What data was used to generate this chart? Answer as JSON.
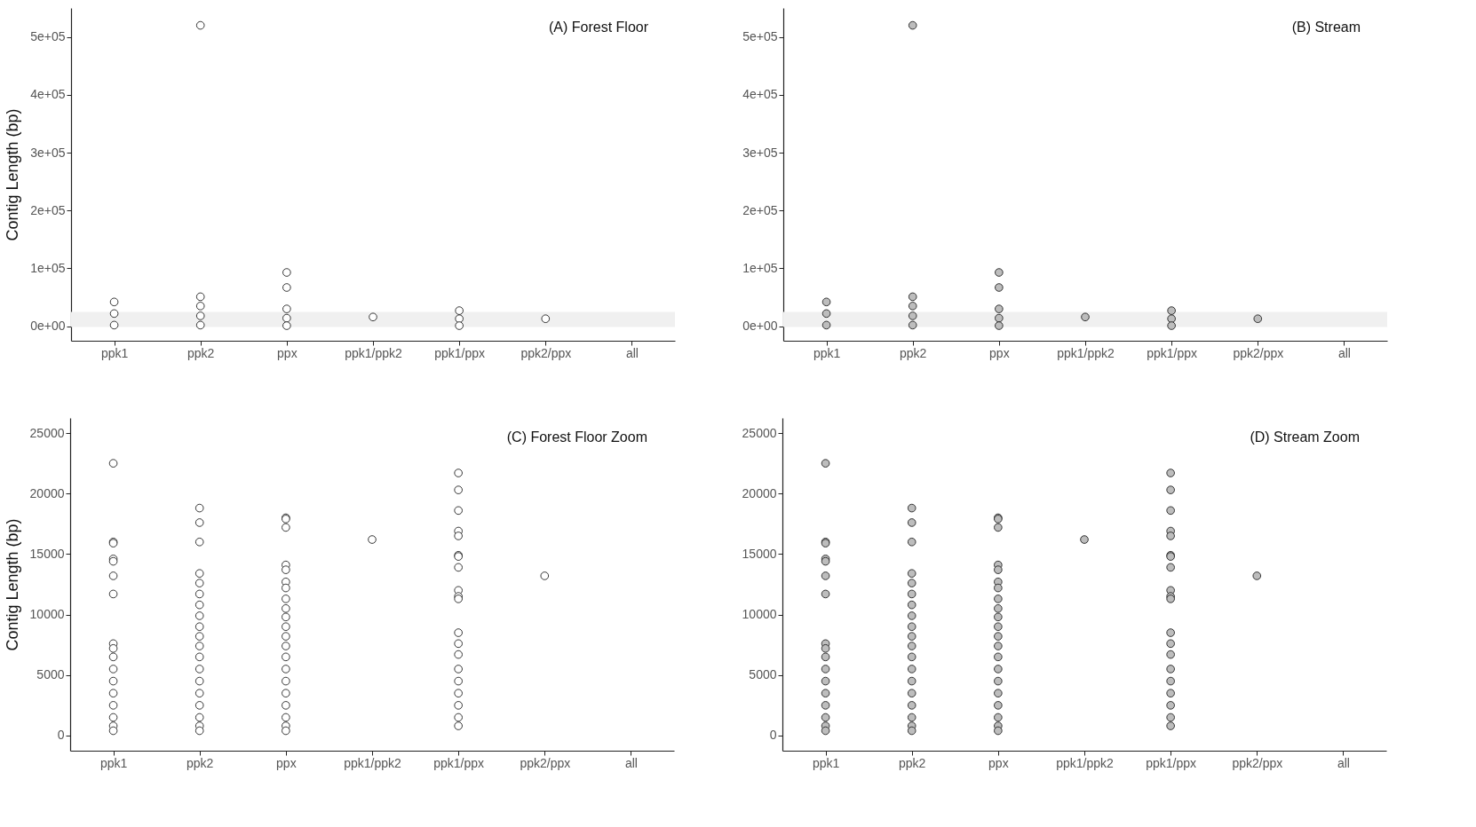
{
  "chart_data": [
    {
      "type": "scatter",
      "title": "(A) Forest Floor",
      "ylabel": "Contig Length (bp)",
      "marker": "circle",
      "categories": [
        "ppk1",
        "ppk2",
        "ppx",
        "ppk1/ppk2",
        "ppk1/ppx",
        "ppk2/ppx",
        "all"
      ],
      "ylim": [
        -25000,
        550000
      ],
      "yticks": [
        {
          "value": 0,
          "label": "0e+00"
        },
        {
          "value": 100000,
          "label": "1e+05"
        },
        {
          "value": 200000,
          "label": "2e+05"
        },
        {
          "value": 300000,
          "label": "3e+05"
        },
        {
          "value": 400000,
          "label": "4e+05"
        },
        {
          "value": 500000,
          "label": "5e+05"
        }
      ],
      "bands": [
        {
          "axis": "y",
          "from": -1200,
          "to": 25000,
          "color": "#f0f0f0"
        }
      ],
      "series": [
        {
          "color": "#ffffff",
          "x": [
            "ppk1",
            "ppk1",
            "ppk1",
            "ppk2",
            "ppk2",
            "ppk2",
            "ppk2",
            "ppk2",
            "ppx",
            "ppx",
            "ppx",
            "ppx",
            "ppx",
            "ppk1/ppk2",
            "ppk1/ppx",
            "ppk1/ppx",
            "ppk1/ppx",
            "ppk2/ppx"
          ],
          "values": [
            42000,
            22000,
            2000,
            520000,
            51000,
            35000,
            18000,
            2000,
            93000,
            67000,
            30000,
            14000,
            1000,
            16000,
            27000,
            13000,
            1000,
            13000
          ]
        }
      ]
    },
    {
      "type": "scatter",
      "title": "(B) Stream",
      "marker": "circle",
      "categories": [
        "ppk1",
        "ppk2",
        "ppx",
        "ppk1/ppk2",
        "ppk1/ppx",
        "ppk2/ppx",
        "all"
      ],
      "ylim": [
        -25000,
        550000
      ],
      "yticks": [
        {
          "value": 0,
          "label": "0e+00"
        },
        {
          "value": 100000,
          "label": "1e+05"
        },
        {
          "value": 200000,
          "label": "2e+05"
        },
        {
          "value": 300000,
          "label": "3e+05"
        },
        {
          "value": 400000,
          "label": "4e+05"
        },
        {
          "value": 500000,
          "label": "5e+05"
        }
      ],
      "bands": [
        {
          "axis": "y",
          "from": -1200,
          "to": 25000,
          "color": "#f0f0f0"
        }
      ],
      "series": [
        {
          "color": "#bdbdbd",
          "x": [
            "ppk1",
            "ppk1",
            "ppk1",
            "ppk2",
            "ppk2",
            "ppk2",
            "ppk2",
            "ppk2",
            "ppx",
            "ppx",
            "ppx",
            "ppx",
            "ppx",
            "ppk1/ppk2",
            "ppk1/ppx",
            "ppk1/ppx",
            "ppk1/ppx",
            "ppk2/ppx"
          ],
          "values": [
            42000,
            22000,
            2000,
            520000,
            51000,
            35000,
            18000,
            2000,
            93000,
            67000,
            30000,
            14000,
            1000,
            16000,
            27000,
            13000,
            1000,
            13000
          ]
        }
      ]
    },
    {
      "type": "scatter",
      "title": "(C) Forest Floor Zoom",
      "ylabel": "Contig Length (bp)",
      "marker": "circle",
      "categories": [
        "ppk1",
        "ppk2",
        "ppx",
        "ppk1/ppk2",
        "ppk1/ppx",
        "ppk2/ppx",
        "all"
      ],
      "ylim": [
        -1250,
        26250
      ],
      "yticks": [
        0,
        5000,
        10000,
        15000,
        20000,
        25000
      ],
      "series": [
        {
          "color": "#ffffff",
          "x": [
            "ppk1",
            "ppk1",
            "ppk1",
            "ppk1",
            "ppk1",
            "ppk1",
            "ppk1",
            "ppk1",
            "ppk1",
            "ppk1",
            "ppk1",
            "ppk1",
            "ppk1",
            "ppk1",
            "ppk1",
            "ppk1",
            "ppk1",
            "ppk2",
            "ppk2",
            "ppk2",
            "ppk2",
            "ppk2",
            "ppk2",
            "ppk2",
            "ppk2",
            "ppk2",
            "ppk2",
            "ppk2",
            "ppk2",
            "ppk2",
            "ppk2",
            "ppk2",
            "ppk2",
            "ppk2",
            "ppk2",
            "ppk2",
            "ppx",
            "ppx",
            "ppx",
            "ppx",
            "ppx",
            "ppx",
            "ppx",
            "ppx",
            "ppx",
            "ppx",
            "ppx",
            "ppx",
            "ppx",
            "ppx",
            "ppx",
            "ppx",
            "ppx",
            "ppx",
            "ppx",
            "ppx",
            "ppx",
            "ppk1/ppk2",
            "ppk1/ppx",
            "ppk1/ppx",
            "ppk1/ppx",
            "ppk1/ppx",
            "ppk1/ppx",
            "ppk1/ppx",
            "ppk1/ppx",
            "ppk1/ppx",
            "ppk1/ppx",
            "ppk1/ppx",
            "ppk1/ppx",
            "ppk1/ppx",
            "ppk1/ppx",
            "ppk1/ppx",
            "ppk1/ppx",
            "ppk1/ppx",
            "ppk1/ppx",
            "ppk1/ppx",
            "ppk1/ppx",
            "ppk1/ppx",
            "ppk2/ppx"
          ],
          "values": [
            22500,
            16000,
            15900,
            14600,
            14400,
            13200,
            11700,
            7600,
            7200,
            6500,
            5500,
            4500,
            3500,
            2500,
            1500,
            800,
            400,
            18800,
            17600,
            16000,
            13400,
            12600,
            11700,
            10800,
            9900,
            9000,
            8200,
            7400,
            6500,
            5500,
            4500,
            3500,
            2500,
            1500,
            800,
            400,
            18000,
            17900,
            17200,
            14100,
            13700,
            12700,
            12200,
            11300,
            10500,
            9800,
            9000,
            8200,
            7400,
            6500,
            5500,
            4500,
            3500,
            2500,
            1500,
            800,
            400,
            16200,
            21700,
            20300,
            18600,
            16900,
            16500,
            14900,
            14800,
            13900,
            12000,
            11500,
            11300,
            8500,
            7600,
            6700,
            5500,
            4500,
            3500,
            2500,
            1500,
            800,
            13200
          ]
        }
      ]
    },
    {
      "type": "scatter",
      "title": "(D) Stream  Zoom",
      "marker": "circle",
      "categories": [
        "ppk1",
        "ppk2",
        "ppx",
        "ppk1/ppk2",
        "ppk1/ppx",
        "ppk2/ppx",
        "all"
      ],
      "ylim": [
        -1250,
        26250
      ],
      "yticks": [
        0,
        5000,
        10000,
        15000,
        20000,
        25000
      ],
      "series": [
        {
          "color": "#bdbdbd",
          "x": [
            "ppk1",
            "ppk1",
            "ppk1",
            "ppk1",
            "ppk1",
            "ppk1",
            "ppk1",
            "ppk1",
            "ppk1",
            "ppk1",
            "ppk1",
            "ppk1",
            "ppk1",
            "ppk1",
            "ppk1",
            "ppk1",
            "ppk1",
            "ppk2",
            "ppk2",
            "ppk2",
            "ppk2",
            "ppk2",
            "ppk2",
            "ppk2",
            "ppk2",
            "ppk2",
            "ppk2",
            "ppk2",
            "ppk2",
            "ppk2",
            "ppk2",
            "ppk2",
            "ppk2",
            "ppk2",
            "ppk2",
            "ppk2",
            "ppx",
            "ppx",
            "ppx",
            "ppx",
            "ppx",
            "ppx",
            "ppx",
            "ppx",
            "ppx",
            "ppx",
            "ppx",
            "ppx",
            "ppx",
            "ppx",
            "ppx",
            "ppx",
            "ppx",
            "ppx",
            "ppx",
            "ppx",
            "ppx",
            "ppk1/ppk2",
            "ppk1/ppx",
            "ppk1/ppx",
            "ppk1/ppx",
            "ppk1/ppx",
            "ppk1/ppx",
            "ppk1/ppx",
            "ppk1/ppx",
            "ppk1/ppx",
            "ppk1/ppx",
            "ppk1/ppx",
            "ppk1/ppx",
            "ppk1/ppx",
            "ppk1/ppx",
            "ppk1/ppx",
            "ppk1/ppx",
            "ppk1/ppx",
            "ppk1/ppx",
            "ppk1/ppx",
            "ppk1/ppx",
            "ppk1/ppx",
            "ppk2/ppx"
          ],
          "values": [
            22500,
            16000,
            15900,
            14600,
            14400,
            13200,
            11700,
            7600,
            7200,
            6500,
            5500,
            4500,
            3500,
            2500,
            1500,
            800,
            400,
            18800,
            17600,
            16000,
            13400,
            12600,
            11700,
            10800,
            9900,
            9000,
            8200,
            7400,
            6500,
            5500,
            4500,
            3500,
            2500,
            1500,
            800,
            400,
            18000,
            17900,
            17200,
            14100,
            13700,
            12700,
            12200,
            11300,
            10500,
            9800,
            9000,
            8200,
            7400,
            6500,
            5500,
            4500,
            3500,
            2500,
            1500,
            800,
            400,
            16200,
            21700,
            20300,
            18600,
            16900,
            16500,
            14900,
            14800,
            13900,
            12000,
            11500,
            11300,
            8500,
            7600,
            6700,
            5500,
            4500,
            3500,
            2500,
            1500,
            800,
            13200
          ]
        }
      ]
    }
  ]
}
